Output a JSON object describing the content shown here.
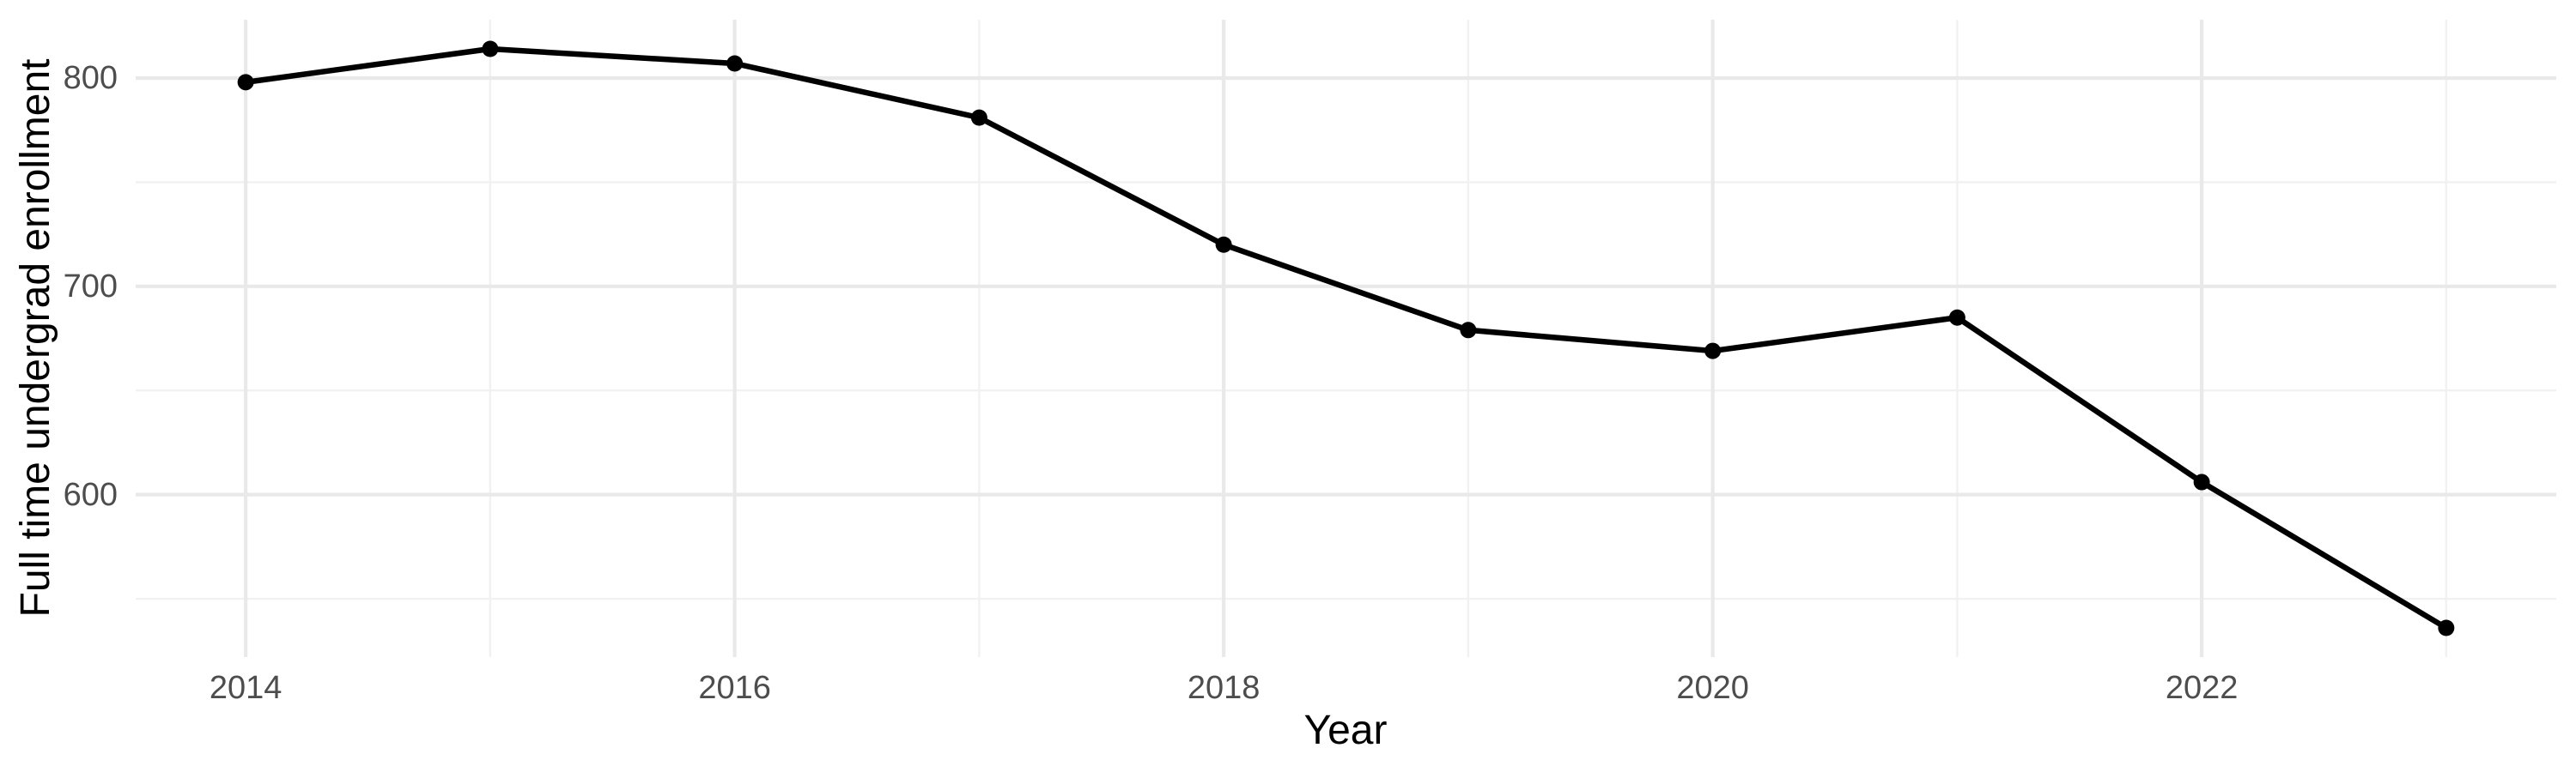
{
  "chart_data": {
    "type": "line",
    "title": "",
    "xlabel": "Year",
    "ylabel": "Full time undergrad enrollment",
    "x": [
      2014,
      2015,
      2016,
      2017,
      2018,
      2019,
      2020,
      2021,
      2022,
      2023
    ],
    "values": [
      798,
      814,
      807,
      781,
      720,
      679,
      669,
      685,
      606,
      536
    ],
    "series_name": "Full time undergrad enrollment",
    "xlim": [
      2013.55,
      2023.45
    ],
    "ylim": [
      522,
      828
    ],
    "x_tick_labels": [
      {
        "value": 2014,
        "label": "2014"
      },
      {
        "value": 2016,
        "label": "2016"
      },
      {
        "value": 2018,
        "label": "2018"
      },
      {
        "value": 2020,
        "label": "2020"
      },
      {
        "value": 2022,
        "label": "2022"
      }
    ],
    "y_tick_labels": [
      {
        "value": 800,
        "label": "800"
      },
      {
        "value": 700,
        "label": "700"
      },
      {
        "value": 600,
        "label": "600"
      }
    ],
    "x_major_gridlines": [
      2014,
      2016,
      2018,
      2020,
      2022
    ],
    "x_minor_gridlines": [
      2015,
      2017,
      2019,
      2021,
      2023
    ],
    "y_major_gridlines": [
      800,
      700,
      600
    ],
    "y_minor_gridlines": [
      750,
      650,
      550
    ],
    "grid": "on",
    "legend": "none",
    "point_marker": "circle",
    "colors": {
      "line": "#000000",
      "point": "#000000",
      "grid_major": "#E9E9E9",
      "grid_minor": "#F1F1F1",
      "tick_label": "#4D4D4D",
      "axis_title": "#000000",
      "background": "#FFFFFF"
    }
  }
}
